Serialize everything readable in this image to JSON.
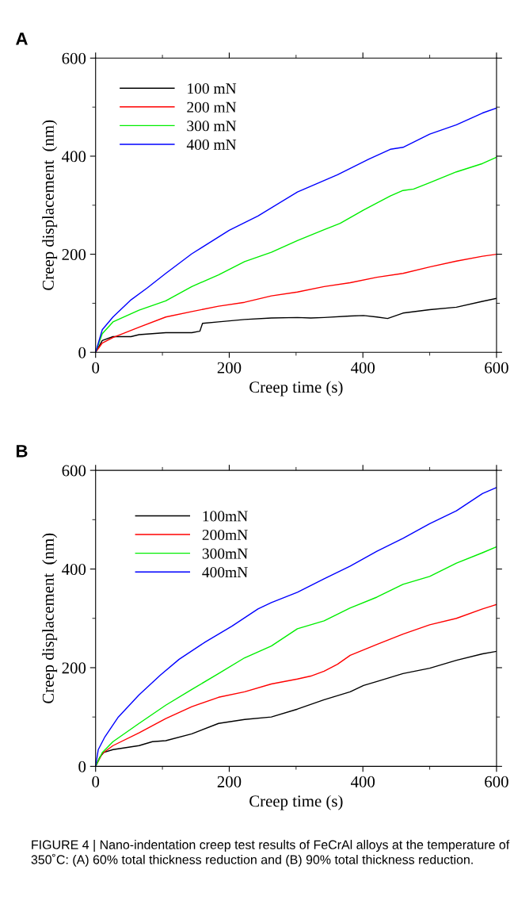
{
  "chart_data": [
    {
      "type": "line",
      "title": "A",
      "xlabel": "Creep time (s)",
      "ylabel": "Creep displacement  (nm)",
      "xlim": [
        0,
        600
      ],
      "ylim": [
        0,
        600
      ],
      "xticks": [
        0,
        {
          "value": 100,
          "label": null
        },
        200,
        {
          "value": 300,
          "label": null
        },
        400,
        {
          "value": 500,
          "label": null
        },
        600
      ],
      "yticks": [
        0,
        {
          "value": 100,
          "label": null
        },
        200,
        {
          "value": 300,
          "label": null
        },
        400,
        {
          "value": 500,
          "label": null
        },
        600
      ],
      "legend": "top left",
      "grid": false,
      "marker": "none",
      "line_style": "solid",
      "series": [
        {
          "name": "100 mN",
          "color": "#000000",
          "x": [
            0,
            10,
            26,
            53,
            65,
            105,
            144,
            156,
            160,
            184,
            223,
            263,
            302,
            322,
            342,
            381,
            401,
            421,
            437,
            460,
            500,
            540,
            579,
            600
          ],
          "values": [
            0,
            24,
            32,
            32,
            36,
            40,
            40,
            43,
            59,
            62,
            67,
            70,
            71,
            70,
            71,
            74,
            75,
            72,
            69,
            80,
            87,
            92,
            104,
            110
          ]
        },
        {
          "name": "200 mN",
          "color": "#ff0000",
          "x": [
            0,
            10,
            26,
            65,
            105,
            144,
            184,
            223,
            263,
            302,
            342,
            381,
            421,
            460,
            500,
            540,
            579,
            600
          ],
          "values": [
            0,
            19,
            30,
            51,
            72,
            83,
            94,
            102,
            115,
            123,
            134,
            142,
            153,
            161,
            174,
            186,
            196,
            200
          ]
        },
        {
          "name": "300 mN",
          "color": "#00ee00",
          "x": [
            0,
            10,
            26,
            65,
            105,
            144,
            184,
            223,
            263,
            302,
            342,
            366,
            401,
            441,
            460,
            476,
            500,
            540,
            579,
            600
          ],
          "values": [
            0,
            38,
            62,
            86,
            105,
            134,
            158,
            185,
            204,
            228,
            250,
            263,
            290,
            319,
            330,
            333,
            346,
            368,
            385,
            398
          ]
        },
        {
          "name": "400 mN",
          "color": "#0000ff",
          "x": [
            0,
            10,
            26,
            53,
            77,
            105,
            144,
            200,
            243,
            302,
            362,
            409,
            441,
            460,
            500,
            540,
            579,
            600
          ],
          "values": [
            0,
            46,
            72,
            107,
            131,
            161,
            201,
            249,
            278,
            327,
            362,
            394,
            414,
            418,
            445,
            464,
            488,
            498
          ]
        }
      ]
    },
    {
      "type": "line",
      "title": "B",
      "xlabel": "Creep time (s)",
      "ylabel": "Creep displacement  (nm)",
      "xlim": [
        0,
        600
      ],
      "ylim": [
        0,
        600
      ],
      "xticks": [
        0,
        {
          "value": 100,
          "label": null
        },
        200,
        {
          "value": 300,
          "label": null
        },
        400,
        {
          "value": 500,
          "label": null
        },
        600
      ],
      "yticks": [
        0,
        {
          "value": 100,
          "label": null
        },
        200,
        {
          "value": 300,
          "label": null
        },
        400,
        {
          "value": 500,
          "label": null
        },
        600
      ],
      "legend": "top left",
      "grid": false,
      "marker": "none",
      "line_style": "solid",
      "annotations": [
        "FIGURE 4 | Nano-indentation creep test results of FeCrAl alloys at the temperature of 350˚C: (A) 60% total thickness reduction and (B) 90% total thickness reduction."
      ],
      "series": [
        {
          "name": "100mN",
          "color": "#000000",
          "x": [
            0,
            6,
            12,
            26,
            65,
            85,
            105,
            144,
            184,
            223,
            263,
            302,
            342,
            381,
            401,
            421,
            460,
            500,
            540,
            579,
            600
          ],
          "values": [
            0,
            18,
            28,
            34,
            42,
            50,
            52,
            66,
            87,
            95,
            100,
            116,
            135,
            151,
            164,
            172,
            188,
            199,
            215,
            228,
            233
          ]
        },
        {
          "name": "200mN",
          "color": "#ff0000",
          "x": [
            0,
            10,
            26,
            65,
            105,
            144,
            184,
            223,
            263,
            302,
            322,
            342,
            362,
            381,
            421,
            460,
            500,
            540,
            579,
            600
          ],
          "values": [
            0,
            26,
            42,
            68,
            97,
            121,
            140,
            151,
            167,
            177,
            183,
            193,
            207,
            225,
            247,
            268,
            287,
            300,
            319,
            328
          ]
        },
        {
          "name": "300mN",
          "color": "#00ee00",
          "x": [
            0,
            10,
            26,
            65,
            105,
            144,
            184,
            223,
            263,
            302,
            342,
            381,
            421,
            460,
            500,
            540,
            579,
            600
          ],
          "values": [
            0,
            28,
            50,
            87,
            124,
            156,
            188,
            220,
            244,
            279,
            295,
            321,
            343,
            369,
            385,
            412,
            433,
            445
          ]
        },
        {
          "name": "400mN",
          "color": "#0000ff",
          "x": [
            0,
            4,
            14,
            34,
            65,
            97,
            125,
            164,
            204,
            243,
            263,
            302,
            342,
            381,
            421,
            460,
            500,
            540,
            579,
            600
          ],
          "values": [
            0,
            34,
            60,
            100,
            145,
            185,
            217,
            252,
            284,
            319,
            332,
            353,
            380,
            406,
            436,
            462,
            492,
            518,
            553,
            565
          ]
        }
      ]
    }
  ]
}
